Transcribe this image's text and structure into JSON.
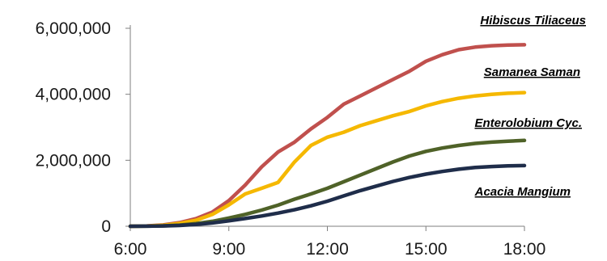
{
  "chart_data": {
    "type": "line",
    "title": "",
    "xlabel": "",
    "ylabel": "",
    "grid": false,
    "legend": "inline labels at right end of lines",
    "xlim": [
      "6:00",
      "18:00"
    ],
    "ylim": [
      0,
      6000000
    ],
    "x_ticks": [
      "6:00",
      "9:00",
      "12:00",
      "15:00",
      "18:00"
    ],
    "y_ticks": [
      "0",
      "2,000,000",
      "4,000,000",
      "6,000,000"
    ],
    "x": [
      "6:00",
      "6:30",
      "7:00",
      "7:30",
      "8:00",
      "8:30",
      "9:00",
      "9:30",
      "10:00",
      "10:30",
      "11:00",
      "11:30",
      "12:00",
      "12:30",
      "13:00",
      "13:30",
      "14:00",
      "14:30",
      "15:00",
      "15:30",
      "16:00",
      "16:30",
      "17:00",
      "17:30",
      "18:00"
    ],
    "series": [
      {
        "name": "Hibiscus Tiliaceus",
        "color": "#c0504d",
        "values": [
          0,
          10000,
          40000,
          110000,
          230000,
          430000,
          780000,
          1250000,
          1800000,
          2250000,
          2550000,
          2950000,
          3300000,
          3700000,
          3950000,
          4200000,
          4450000,
          4700000,
          5000000,
          5200000,
          5350000,
          5430000,
          5470000,
          5490000,
          5500000
        ]
      },
      {
        "name": "Samanea Saman",
        "color": "#f5b800",
        "values": [
          0,
          8000,
          30000,
          85000,
          180000,
          360000,
          650000,
          980000,
          1150000,
          1330000,
          1950000,
          2450000,
          2700000,
          2850000,
          3050000,
          3200000,
          3350000,
          3480000,
          3650000,
          3780000,
          3880000,
          3950000,
          4000000,
          4030000,
          4050000
        ]
      },
      {
        "name": "Enterolobium Cyc.",
        "color": "#4f6228",
        "values": [
          0,
          3000,
          12000,
          35000,
          80000,
          150000,
          250000,
          360000,
          490000,
          640000,
          820000,
          980000,
          1150000,
          1350000,
          1550000,
          1750000,
          1950000,
          2130000,
          2270000,
          2370000,
          2450000,
          2510000,
          2550000,
          2580000,
          2600000
        ]
      },
      {
        "name": "Acacia Mangium",
        "color": "#1f2d4a",
        "values": [
          0,
          2000,
          9000,
          25000,
          55000,
          100000,
          165000,
          235000,
          310000,
          400000,
          500000,
          620000,
          760000,
          920000,
          1080000,
          1220000,
          1360000,
          1480000,
          1580000,
          1660000,
          1730000,
          1780000,
          1810000,
          1830000,
          1840000
        ]
      }
    ]
  }
}
